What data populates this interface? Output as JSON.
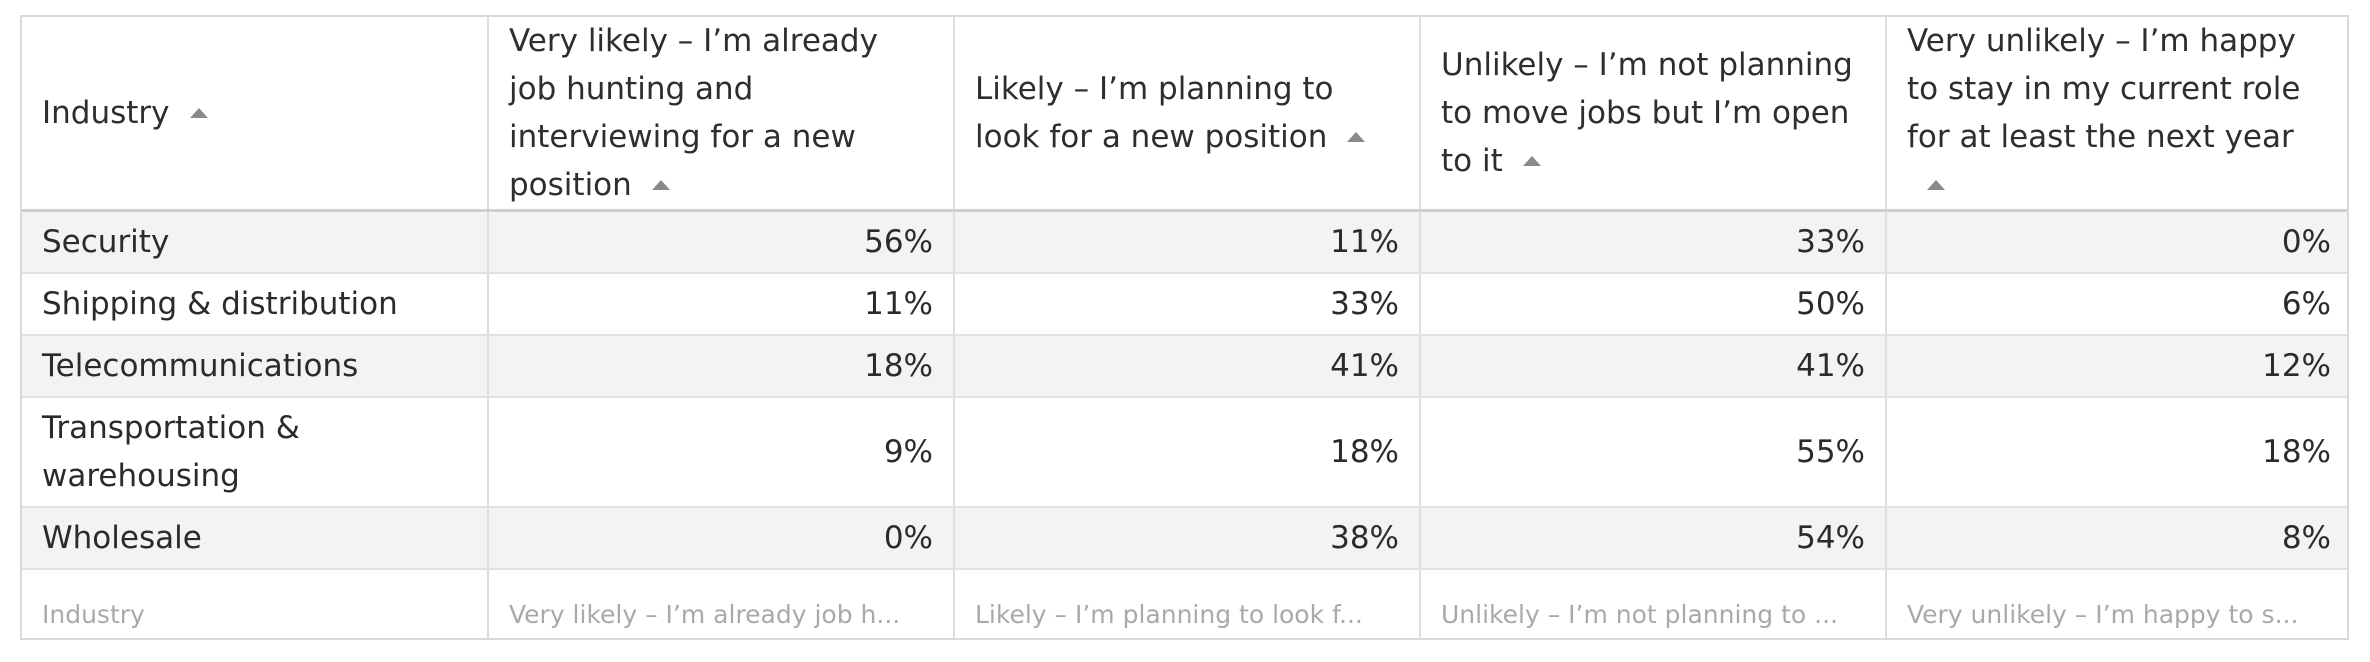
{
  "columns": [
    {
      "label": "Industry"
    },
    {
      "label": "Very likely – I’m already job hunting and interviewing for a new position"
    },
    {
      "label": "Likely – I’m planning to look for a new position"
    },
    {
      "label": "Unlikely – I’m not planning to move jobs but I’m open to it"
    },
    {
      "label": "Very unlikely – I’m happy to stay in my current role for at least the next year"
    }
  ],
  "rows": [
    {
      "industry": "Security",
      "values": [
        "56%",
        "11%",
        "33%",
        "0%"
      ]
    },
    {
      "industry": "Shipping & distribution",
      "values": [
        "11%",
        "33%",
        "50%",
        "6%"
      ]
    },
    {
      "industry": "Telecommunications",
      "values": [
        "18%",
        "41%",
        "41%",
        "12%"
      ]
    },
    {
      "industry": "Transportation & warehousing",
      "values": [
        "9%",
        "18%",
        "55%",
        "18%"
      ]
    },
    {
      "industry": "Wholesale",
      "values": [
        "0%",
        "38%",
        "54%",
        "8%"
      ]
    }
  ],
  "filters": [
    {
      "placeholder": "Industry"
    },
    {
      "placeholder": "Very likely – I’m already job h..."
    },
    {
      "placeholder": "Likely – I’m planning to look f..."
    },
    {
      "placeholder": "Unlikely – I’m not planning to ..."
    },
    {
      "placeholder": "Very unlikely – I’m happy to s..."
    }
  ],
  "colors": {
    "header_border": "#cfcfcf",
    "stripe": "#f3f3f3",
    "sort_icon": "#8a8a8a"
  }
}
